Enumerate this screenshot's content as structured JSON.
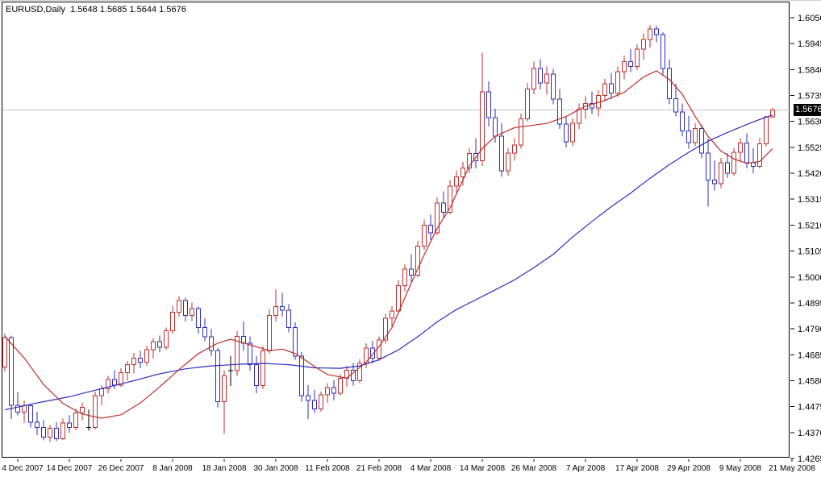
{
  "window": {
    "title_line": "EURUSD,Daily  1.5648 1.5685 1.5644 1.5676"
  },
  "chart_data": {
    "type": "candlestick",
    "symbol": "EURUSD",
    "timeframe": "Daily",
    "quote": {
      "open": "1.5648",
      "high": "1.5685",
      "low": "1.5644",
      "close": "1.5676"
    },
    "current_price": "1.5676",
    "current_price_level": 1.5676,
    "legend_position": "none",
    "grid": "horizontal line at current price only",
    "y_axis": {
      "min": 1.4265,
      "max": 1.605,
      "tick_step": 0.0105,
      "ticks": [
        "1.6050",
        "1.5945",
        "1.5840",
        "1.5735",
        "1.5630",
        "1.5525",
        "1.5420",
        "1.5315",
        "1.5210",
        "1.5105",
        "1.5000",
        "1.4895",
        "1.4790",
        "1.4685",
        "1.4580",
        "1.4475",
        "1.4370",
        "1.4265"
      ]
    },
    "x_axis": {
      "labels": [
        "4 Dec 2007",
        "14 Dec 2007",
        "26 Dec 2007",
        "8 Jan 2008",
        "18 Jan 2008",
        "30 Jan 2008",
        "11 Feb 2008",
        "21 Feb 2008",
        "4 Mar 2008",
        "14 Mar 2008",
        "26 Mar 2008",
        "7 Apr 2008",
        "17 Apr 2008",
        "29 Apr 2008",
        "9 May 2008",
        "21 May 2008"
      ],
      "bar_indices": [
        2,
        10,
        18,
        26,
        34,
        42,
        50,
        58,
        66,
        74,
        82,
        90,
        98,
        106,
        114,
        122
      ]
    },
    "colors": {
      "up": "#BE2D2D",
      "down": "#2D2DBE",
      "doji": "#000000",
      "ma_fast": "#BE2D2D",
      "ma_slow": "#2D2DBE",
      "grid_line": "#C4C4C4",
      "axis_text": "#000000",
      "price_box_bg": "#000000",
      "price_box_text": "#FFFFFF",
      "background": "#FFFFFF",
      "border": "#000000"
    },
    "candles": [
      [
        1.4635,
        1.477,
        1.4618,
        1.4755
      ],
      [
        1.4755,
        1.4762,
        1.4425,
        1.448
      ],
      [
        1.448,
        1.4532,
        1.444,
        1.4452
      ],
      [
        1.4452,
        1.45,
        1.441,
        1.4478
      ],
      [
        1.4478,
        1.4486,
        1.439,
        1.4412
      ],
      [
        1.4412,
        1.4455,
        1.436,
        1.439
      ],
      [
        1.439,
        1.442,
        1.4338,
        1.4352
      ],
      [
        1.4352,
        1.44,
        1.4332,
        1.4388
      ],
      [
        1.4388,
        1.4412,
        1.4335,
        1.4345
      ],
      [
        1.4345,
        1.4426,
        1.434,
        1.4408
      ],
      [
        1.4408,
        1.444,
        1.437,
        1.439
      ],
      [
        1.439,
        1.4466,
        1.438,
        1.445
      ],
      [
        1.445,
        1.449,
        1.442,
        1.4472
      ],
      [
        1.439,
        1.4462,
        1.4378,
        1.439
      ],
      [
        1.439,
        1.4536,
        1.4382,
        1.452
      ],
      [
        1.452,
        1.4562,
        1.448,
        1.4548
      ],
      [
        1.4548,
        1.46,
        1.453,
        1.4585
      ],
      [
        1.4585,
        1.4622,
        1.4545,
        1.4562
      ],
      [
        1.4562,
        1.463,
        1.4555,
        1.4612
      ],
      [
        1.4612,
        1.466,
        1.458,
        1.4645
      ],
      [
        1.4645,
        1.4692,
        1.461,
        1.4672
      ],
      [
        1.4672,
        1.47,
        1.463,
        1.4655
      ],
      [
        1.4655,
        1.4722,
        1.464,
        1.4706
      ],
      [
        1.4706,
        1.4752,
        1.467,
        1.4738
      ],
      [
        1.4738,
        1.4762,
        1.4695,
        1.4715
      ],
      [
        1.4715,
        1.4796,
        1.4705,
        1.4782
      ],
      [
        1.4782,
        1.4882,
        1.477,
        1.4858
      ],
      [
        1.4858,
        1.4922,
        1.484,
        1.4905
      ],
      [
        1.4905,
        1.4916,
        1.482,
        1.4845
      ],
      [
        1.4845,
        1.4896,
        1.4822,
        1.4872
      ],
      [
        1.4872,
        1.488,
        1.477,
        1.4795
      ],
      [
        1.4795,
        1.4832,
        1.474,
        1.4758
      ],
      [
        1.4758,
        1.479,
        1.468,
        1.4702
      ],
      [
        1.4702,
        1.4712,
        1.447,
        1.4495
      ],
      [
        1.4495,
        1.462,
        1.4365,
        1.46
      ],
      [
        1.462,
        1.468,
        1.4558,
        1.462
      ],
      [
        1.462,
        1.478,
        1.46,
        1.476
      ],
      [
        1.476,
        1.482,
        1.47,
        1.4732
      ],
      [
        1.4732,
        1.476,
        1.462,
        1.4645
      ],
      [
        1.4645,
        1.468,
        1.453,
        1.456
      ],
      [
        1.456,
        1.472,
        1.4545,
        1.47
      ],
      [
        1.47,
        1.487,
        1.469,
        1.4845
      ],
      [
        1.4845,
        1.495,
        1.482,
        1.488
      ],
      [
        1.488,
        1.4936,
        1.484,
        1.4865
      ],
      [
        1.4865,
        1.489,
        1.4775,
        1.4795
      ],
      [
        1.4795,
        1.4816,
        1.4665,
        1.468
      ],
      [
        1.468,
        1.4696,
        1.4495,
        1.452
      ],
      [
        1.452,
        1.4562,
        1.4425,
        1.45
      ],
      [
        1.45,
        1.4542,
        1.445,
        1.4465
      ],
      [
        1.4465,
        1.4536,
        1.4455,
        1.4522
      ],
      [
        1.4522,
        1.457,
        1.449,
        1.4552
      ],
      [
        1.4552,
        1.4582,
        1.45,
        1.453
      ],
      [
        1.453,
        1.4606,
        1.452,
        1.459
      ],
      [
        1.459,
        1.464,
        1.4555,
        1.4622
      ],
      [
        1.4622,
        1.4652,
        1.456,
        1.458
      ],
      [
        1.458,
        1.4666,
        1.457,
        1.465
      ],
      [
        1.465,
        1.4732,
        1.463,
        1.4712
      ],
      [
        1.4712,
        1.4742,
        1.465,
        1.4672
      ],
      [
        1.4672,
        1.476,
        1.466,
        1.4745
      ],
      [
        1.4745,
        1.485,
        1.473,
        1.4832
      ],
      [
        1.4832,
        1.4882,
        1.48,
        1.4862
      ],
      [
        1.4862,
        1.4986,
        1.485,
        1.4965
      ],
      [
        1.4965,
        1.5052,
        1.494,
        1.5032
      ],
      [
        1.5032,
        1.5092,
        1.498,
        1.5008
      ],
      [
        1.5008,
        1.5146,
        1.5,
        1.5125
      ],
      [
        1.5125,
        1.5232,
        1.511,
        1.521
      ],
      [
        1.521,
        1.5252,
        1.515,
        1.5178
      ],
      [
        1.5178,
        1.5322,
        1.517,
        1.53
      ],
      [
        1.53,
        1.5346,
        1.524,
        1.5262
      ],
      [
        1.5262,
        1.5392,
        1.5255,
        1.5368
      ],
      [
        1.5368,
        1.5432,
        1.534,
        1.5405
      ],
      [
        1.5405,
        1.5466,
        1.537,
        1.5442
      ],
      [
        1.5442,
        1.5522,
        1.542,
        1.55
      ],
      [
        1.55,
        1.5562,
        1.544,
        1.547
      ],
      [
        1.547,
        1.5908,
        1.545,
        1.575
      ],
      [
        1.575,
        1.5792,
        1.561,
        1.5645
      ],
      [
        1.5645,
        1.5682,
        1.5545,
        1.557
      ],
      [
        1.557,
        1.5622,
        1.5405,
        1.543
      ],
      [
        1.543,
        1.5522,
        1.541,
        1.5502
      ],
      [
        1.5502,
        1.5562,
        1.547,
        1.5535
      ],
      [
        1.5535,
        1.5662,
        1.552,
        1.564
      ],
      [
        1.564,
        1.5786,
        1.563,
        1.5762
      ],
      [
        1.5762,
        1.5872,
        1.574,
        1.5845
      ],
      [
        1.5845,
        1.5882,
        1.576,
        1.5785
      ],
      [
        1.5785,
        1.5852,
        1.574,
        1.5822
      ],
      [
        1.5822,
        1.5842,
        1.57,
        1.572
      ],
      [
        1.572,
        1.5762,
        1.56,
        1.562
      ],
      [
        1.562,
        1.5652,
        1.5525,
        1.5548
      ],
      [
        1.5548,
        1.5642,
        1.553,
        1.5622
      ],
      [
        1.5622,
        1.5702,
        1.56,
        1.568
      ],
      [
        1.568,
        1.5732,
        1.564,
        1.5702
      ],
      [
        1.5702,
        1.5752,
        1.566,
        1.5685
      ],
      [
        1.5685,
        1.5756,
        1.565,
        1.5735
      ],
      [
        1.5735,
        1.5802,
        1.571,
        1.5782
      ],
      [
        1.5782,
        1.5826,
        1.572,
        1.5745
      ],
      [
        1.5745,
        1.5852,
        1.573,
        1.5832
      ],
      [
        1.5832,
        1.5896,
        1.58,
        1.5872
      ],
      [
        1.5872,
        1.5922,
        1.583,
        1.5852
      ],
      [
        1.5852,
        1.5942,
        1.584,
        1.5922
      ],
      [
        1.5922,
        1.5986,
        1.588,
        1.5962
      ],
      [
        1.5962,
        1.602,
        1.593,
        1.6005
      ],
      [
        1.6005,
        1.6018,
        1.595,
        1.5982
      ],
      [
        1.5982,
        1.5992,
        1.582,
        1.5845
      ],
      [
        1.5845,
        1.5882,
        1.57,
        1.5722
      ],
      [
        1.5722,
        1.5782,
        1.565,
        1.5668
      ],
      [
        1.5668,
        1.5702,
        1.557,
        1.5592
      ],
      [
        1.5592,
        1.5652,
        1.552,
        1.5545
      ],
      [
        1.5545,
        1.5622,
        1.553,
        1.5602
      ],
      [
        1.5602,
        1.5618,
        1.548,
        1.5502
      ],
      [
        1.5502,
        1.556,
        1.5285,
        1.5392
      ],
      [
        1.5392,
        1.5472,
        1.535,
        1.5378
      ],
      [
        1.5378,
        1.5482,
        1.536,
        1.5462
      ],
      [
        1.5462,
        1.5502,
        1.54,
        1.542
      ],
      [
        1.542,
        1.5522,
        1.541,
        1.5505
      ],
      [
        1.5505,
        1.5562,
        1.547,
        1.5542
      ],
      [
        1.5542,
        1.5582,
        1.544,
        1.5462
      ],
      [
        1.5462,
        1.5522,
        1.542,
        1.5448
      ],
      [
        1.5448,
        1.5562,
        1.544,
        1.554
      ],
      [
        1.554,
        1.5652,
        1.553,
        1.5648
      ],
      [
        1.5648,
        1.5685,
        1.5644,
        1.5676
      ]
    ],
    "doji_indices": [
      13,
      35
    ],
    "ma_fast": {
      "name": "fast-moving-average",
      "anchors": [
        [
          0,
          1.476
        ],
        [
          3,
          1.4672
        ],
        [
          6,
          1.4565
        ],
        [
          9,
          1.4488
        ],
        [
          12,
          1.4445
        ],
        [
          15,
          1.4428
        ],
        [
          18,
          1.4442
        ],
        [
          21,
          1.449
        ],
        [
          24,
          1.4555
        ],
        [
          27,
          1.4625
        ],
        [
          30,
          1.469
        ],
        [
          33,
          1.4732
        ],
        [
          35,
          1.4748
        ],
        [
          38,
          1.4725
        ],
        [
          41,
          1.4702
        ],
        [
          43,
          1.4708
        ],
        [
          45,
          1.469
        ],
        [
          48,
          1.4638
        ],
        [
          50,
          1.4605
        ],
        [
          53,
          1.459
        ],
        [
          56,
          1.4655
        ],
        [
          58,
          1.4718
        ],
        [
          60,
          1.4795
        ],
        [
          63,
          1.4976
        ],
        [
          65,
          1.509
        ],
        [
          67,
          1.5196
        ],
        [
          69,
          1.528
        ],
        [
          72,
          1.545
        ],
        [
          74,
          1.552
        ],
        [
          76,
          1.557
        ],
        [
          79,
          1.5605
        ],
        [
          82,
          1.5615
        ],
        [
          84,
          1.5622
        ],
        [
          87,
          1.565
        ],
        [
          90,
          1.5692
        ],
        [
          93,
          1.5715
        ],
        [
          96,
          1.5748
        ],
        [
          99,
          1.581
        ],
        [
          101,
          1.5835
        ],
        [
          103,
          1.58
        ],
        [
          105,
          1.574
        ],
        [
          107,
          1.565
        ],
        [
          109,
          1.557
        ],
        [
          111,
          1.551
        ],
        [
          113,
          1.5478
        ],
        [
          115,
          1.546
        ],
        [
          117,
          1.5468
        ],
        [
          119,
          1.552
        ]
      ]
    },
    "ma_slow": {
      "name": "slow-moving-average",
      "anchors": [
        [
          0,
          1.4462
        ],
        [
          5,
          1.449
        ],
        [
          10,
          1.4515
        ],
        [
          15,
          1.4548
        ],
        [
          20,
          1.458
        ],
        [
          24,
          1.4608
        ],
        [
          28,
          1.4628
        ],
        [
          32,
          1.464
        ],
        [
          36,
          1.4646
        ],
        [
          40,
          1.465
        ],
        [
          44,
          1.4645
        ],
        [
          48,
          1.4632
        ],
        [
          52,
          1.463
        ],
        [
          55,
          1.464
        ],
        [
          58,
          1.4665
        ],
        [
          61,
          1.4705
        ],
        [
          64,
          1.4758
        ],
        [
          67,
          1.4818
        ],
        [
          70,
          1.4868
        ],
        [
          73,
          1.4908
        ],
        [
          76,
          1.4948
        ],
        [
          79,
          1.4988
        ],
        [
          82,
          1.5038
        ],
        [
          85,
          1.5092
        ],
        [
          88,
          1.5162
        ],
        [
          91,
          1.5225
        ],
        [
          94,
          1.5285
        ],
        [
          97,
          1.534
        ],
        [
          100,
          1.54
        ],
        [
          103,
          1.5455
        ],
        [
          106,
          1.5505
        ],
        [
          109,
          1.555
        ],
        [
          112,
          1.5585
        ],
        [
          115,
          1.5618
        ],
        [
          117,
          1.5638
        ],
        [
          119,
          1.5656
        ]
      ]
    }
  }
}
